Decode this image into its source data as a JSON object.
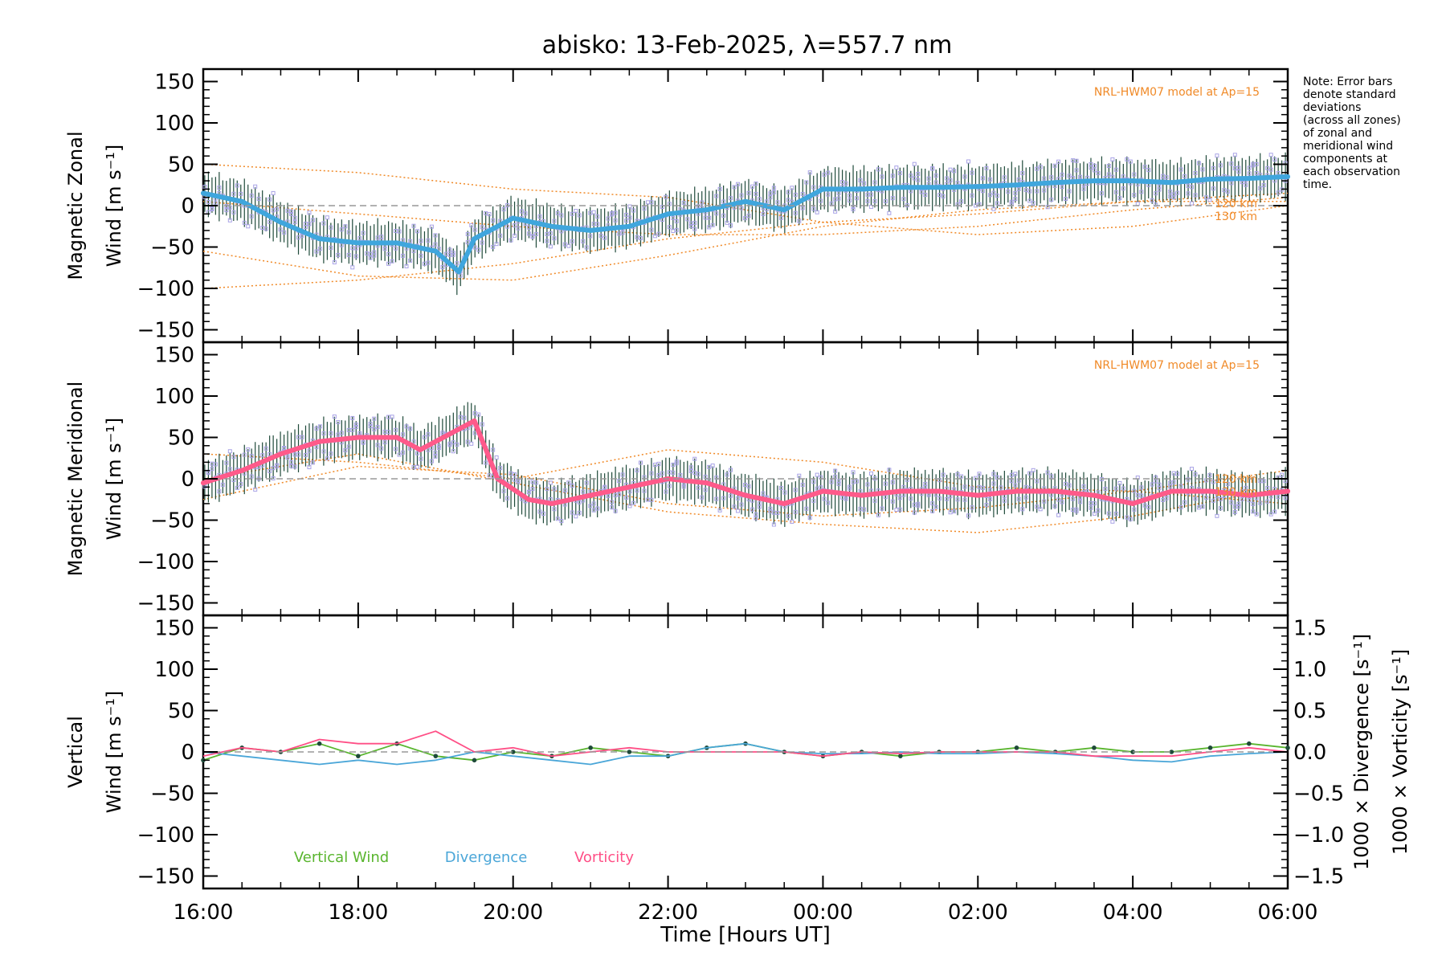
{
  "title": "abisko: 13-Feb-2025, λ=557.7 nm",
  "note_lines": [
    "Note: Error bars",
    "denote standard",
    "deviations",
    "(across all zones)",
    "of zonal and",
    "meridional wind",
    "components at",
    "each observation",
    "time."
  ],
  "colors": {
    "zonal": "#3fa6dd",
    "zonal_alt": "#1f3fd6",
    "meridional": "#ff5a8a",
    "vertical": "#59b52e",
    "divergence": "#4aa6d8",
    "vorticity": "#ff4f86",
    "model": "#f08a28",
    "zone_points": "#a9a3e6",
    "error_bars": "#1f4a3a",
    "zero_line": "#999999"
  },
  "chart_data": [
    {
      "type": "line",
      "panel": "zonal",
      "ylabel_line1": "Magnetic Zonal",
      "ylabel_line2": "Wind [m s⁻¹]",
      "ylim": [
        -165,
        165
      ],
      "yticks": [
        -150,
        -100,
        -50,
        0,
        50,
        100,
        150
      ],
      "ytick_labels": [
        "−150",
        "−100",
        "−50",
        "0",
        "50",
        "100",
        "150"
      ],
      "xlim": [
        16,
        30
      ],
      "model_label": "NRL-HWM07 model at Ap=15",
      "model_alt_labels": [
        "120 km",
        "130 km"
      ],
      "series": {
        "x": [
          16.0,
          16.5,
          17.0,
          17.5,
          18.0,
          18.5,
          19.0,
          19.3,
          19.5,
          20.0,
          20.5,
          21.0,
          21.5,
          22.0,
          22.5,
          23.0,
          23.5,
          24.0,
          24.5,
          25.0,
          25.5,
          26.0,
          26.5,
          27.0,
          27.5,
          28.0,
          28.5,
          29.0,
          29.5,
          30.0
        ],
        "y": [
          15,
          5,
          -20,
          -40,
          -45,
          -45,
          -55,
          -80,
          -40,
          -15,
          -25,
          -30,
          -25,
          -10,
          -5,
          5,
          -5,
          20,
          20,
          22,
          22,
          23,
          25,
          28,
          30,
          30,
          28,
          32,
          33,
          35
        ]
      },
      "model_curves": [
        {
          "x": [
            16,
            18,
            20,
            22,
            24,
            26,
            28,
            30
          ],
          "y": [
            50,
            40,
            20,
            10,
            -20,
            -35,
            -25,
            0
          ]
        },
        {
          "x": [
            16,
            18,
            20,
            22,
            24,
            26,
            28,
            30
          ],
          "y": [
            5,
            -10,
            -25,
            -35,
            -35,
            -25,
            -5,
            10
          ]
        },
        {
          "x": [
            16,
            18,
            20,
            22,
            24,
            26,
            28,
            30
          ],
          "y": [
            -100,
            -90,
            -70,
            -40,
            -20,
            -10,
            5,
            15
          ]
        },
        {
          "x": [
            16,
            18,
            20,
            22,
            24,
            26,
            28,
            30
          ],
          "y": [
            -55,
            -85,
            -90,
            -60,
            -25,
            -5,
            5,
            5
          ]
        }
      ]
    },
    {
      "type": "line",
      "panel": "meridional",
      "ylabel_line1": "Magnetic Meridional",
      "ylabel_line2": "Wind [m s⁻¹]",
      "ylim": [
        -165,
        165
      ],
      "yticks": [
        -150,
        -100,
        -50,
        0,
        50,
        100,
        150
      ],
      "ytick_labels": [
        "−150",
        "−100",
        "−50",
        "0",
        "50",
        "100",
        "150"
      ],
      "xlim": [
        16,
        30
      ],
      "model_label": "NRL-HWM07 model at Ap=15",
      "model_alt_labels": [
        "120 km",
        "130 km"
      ],
      "series": {
        "x": [
          16.0,
          16.5,
          17.0,
          17.5,
          18.0,
          18.5,
          18.8,
          19.2,
          19.5,
          19.8,
          20.2,
          20.5,
          21.0,
          21.5,
          22.0,
          22.5,
          23.0,
          23.5,
          24.0,
          24.5,
          25.0,
          25.5,
          26.0,
          26.5,
          27.0,
          27.5,
          28.0,
          28.5,
          29.0,
          29.5,
          30.0
        ],
        "y": [
          -5,
          10,
          30,
          45,
          50,
          50,
          35,
          55,
          70,
          0,
          -25,
          -30,
          -20,
          -10,
          0,
          -5,
          -20,
          -30,
          -15,
          -20,
          -15,
          -15,
          -20,
          -15,
          -15,
          -20,
          -30,
          -15,
          -15,
          -20,
          -15
        ]
      },
      "model_curves": [
        {
          "x": [
            16,
            18,
            20,
            22,
            24,
            26,
            28,
            30
          ],
          "y": [
            30,
            20,
            0,
            35,
            20,
            -10,
            -15,
            -30
          ]
        },
        {
          "x": [
            16,
            18,
            20,
            22,
            24,
            26,
            28,
            30
          ],
          "y": [
            -25,
            15,
            5,
            -30,
            -45,
            -35,
            -15,
            10
          ]
        },
        {
          "x": [
            16,
            18,
            20,
            22,
            24,
            26,
            28,
            30
          ],
          "y": [
            0,
            30,
            -5,
            -40,
            -55,
            -65,
            -45,
            -10
          ]
        }
      ]
    },
    {
      "type": "line",
      "panel": "vertical",
      "ylabel_line1": "Vertical",
      "ylabel_line2": "Wind [m s⁻¹]",
      "ylim": [
        -165,
        165
      ],
      "yticks": [
        -150,
        -100,
        -50,
        0,
        50,
        100,
        150
      ],
      "ytick_labels": [
        "−150",
        "−100",
        "−50",
        "0",
        "50",
        "100",
        "150"
      ],
      "xlim": [
        16,
        30
      ],
      "xticks": [
        16,
        18,
        20,
        22,
        24,
        26,
        28,
        30
      ],
      "xtick_labels": [
        "16:00",
        "18:00",
        "20:00",
        "22:00",
        "00:00",
        "02:00",
        "04:00",
        "06:00"
      ],
      "xlabel": "Time [Hours UT]",
      "right_ylim": [
        -1.65,
        1.65
      ],
      "right_yticks": [
        -1.5,
        -1.0,
        -0.5,
        0.0,
        0.5,
        1.0,
        1.5
      ],
      "right_ytick_labels": [
        "−1.5",
        "−1.0",
        "−0.5",
        "0.0",
        "0.5",
        "1.0",
        "1.5"
      ],
      "right_ylabel_div": "1000 × Divergence [s⁻¹]",
      "right_ylabel_vort": "1000 × Vorticity [s⁻¹]",
      "legend": [
        "Vertical Wind",
        "Divergence",
        "Vorticity"
      ],
      "series": [
        {
          "name": "Vertical Wind",
          "x": [
            16.0,
            16.5,
            17.0,
            17.5,
            18.0,
            18.5,
            19.0,
            19.5,
            20.0,
            20.5,
            21.0,
            21.5,
            22.0,
            22.5,
            23.0,
            23.5,
            24.0,
            24.5,
            25.0,
            25.5,
            26.0,
            26.5,
            27.0,
            27.5,
            28.0,
            28.5,
            29.0,
            29.5,
            30.0
          ],
          "y": [
            -10,
            5,
            0,
            10,
            -5,
            10,
            -5,
            -10,
            0,
            -5,
            5,
            0,
            -5,
            5,
            10,
            0,
            -5,
            0,
            -5,
            0,
            0,
            5,
            0,
            5,
            0,
            0,
            5,
            10,
            5
          ]
        },
        {
          "name": "Divergence",
          "x": [
            16.0,
            16.5,
            17.0,
            17.5,
            18.0,
            18.5,
            19.0,
            19.5,
            20.0,
            20.5,
            21.0,
            21.5,
            22.0,
            22.5,
            23.0,
            23.5,
            24.0,
            24.5,
            25.0,
            25.5,
            26.0,
            26.5,
            27.0,
            27.5,
            28.0,
            28.5,
            29.0,
            29.5,
            30.0
          ],
          "y": [
            0.0,
            -0.05,
            -0.1,
            -0.15,
            -0.1,
            -0.15,
            -0.1,
            0.0,
            -0.05,
            -0.1,
            -0.15,
            -0.05,
            -0.05,
            0.05,
            0.1,
            0.0,
            -0.02,
            -0.02,
            0.0,
            -0.02,
            -0.02,
            0.0,
            -0.02,
            -0.05,
            -0.1,
            -0.12,
            -0.05,
            -0.02,
            0.0
          ]
        },
        {
          "name": "Vorticity",
          "x": [
            16.0,
            16.5,
            17.0,
            17.5,
            18.0,
            18.5,
            19.0,
            19.5,
            20.0,
            20.5,
            21.0,
            21.5,
            22.0,
            22.5,
            23.0,
            23.5,
            24.0,
            24.5,
            25.0,
            25.5,
            26.0,
            26.5,
            27.0,
            27.5,
            28.0,
            28.5,
            29.0,
            29.5,
            30.0
          ],
          "y": [
            -0.05,
            0.05,
            0.0,
            0.15,
            0.1,
            0.1,
            0.25,
            0.0,
            0.05,
            -0.05,
            0.0,
            0.05,
            0.0,
            0.0,
            0.0,
            0.0,
            -0.05,
            0.0,
            -0.02,
            0.0,
            0.0,
            0.0,
            0.0,
            -0.05,
            -0.05,
            -0.05,
            0.0,
            0.05,
            0.0
          ]
        }
      ]
    }
  ]
}
